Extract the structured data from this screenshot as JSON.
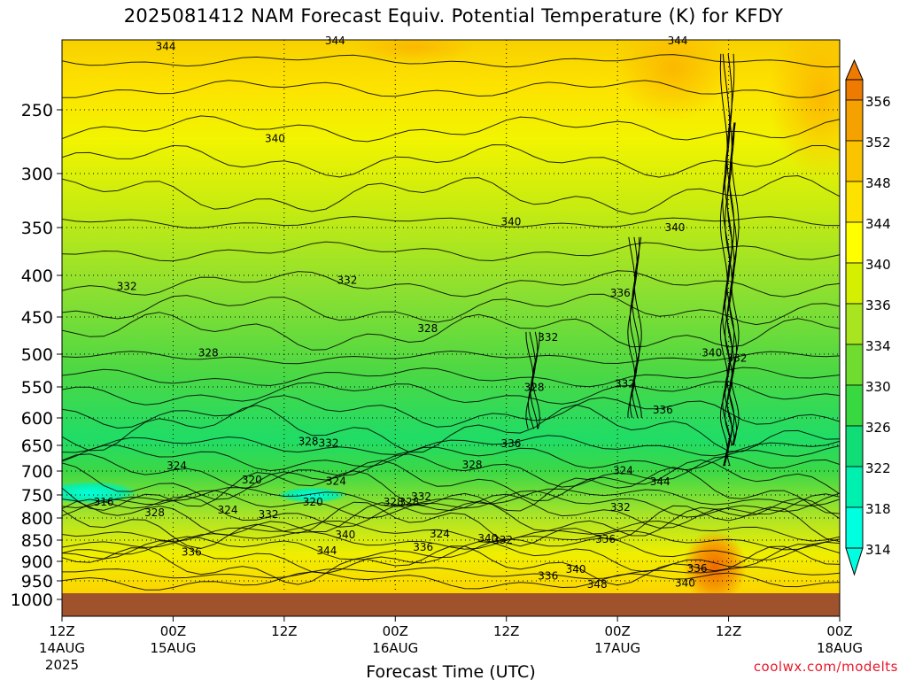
{
  "title": "2025081412 NAM Forecast Equiv. Potential Temperature (K) for KFDY",
  "credit": "coolwx.com/modelts",
  "chart_data": {
    "type": "heatmap",
    "title": "2025081412 NAM Forecast Equiv. Potential Temperature (K) for KFDY",
    "xlabel": "Forecast Time (UTC)",
    "ylabel": "",
    "x_range_hours": [
      0,
      84
    ],
    "x_ticks": [
      {
        "hour": 0,
        "label": "12Z",
        "date": "14AUG",
        "year": "2025"
      },
      {
        "hour": 12,
        "label": "00Z",
        "date": "15AUG",
        "year": ""
      },
      {
        "hour": 24,
        "label": "12Z",
        "date": "",
        "year": ""
      },
      {
        "hour": 36,
        "label": "00Z",
        "date": "16AUG",
        "year": ""
      },
      {
        "hour": 48,
        "label": "12Z",
        "date": "",
        "year": ""
      },
      {
        "hour": 60,
        "label": "00Z",
        "date": "17AUG",
        "year": ""
      },
      {
        "hour": 72,
        "label": "12Z",
        "date": "",
        "year": ""
      },
      {
        "hour": 84,
        "label": "00Z",
        "date": "18AUG",
        "year": ""
      }
    ],
    "y_ticks": [
      "250",
      "300",
      "350",
      "400",
      "450",
      "500",
      "550",
      "600",
      "650",
      "700",
      "750",
      "800",
      "850",
      "900",
      "950",
      "1000"
    ],
    "y_range_hpa": [
      1000,
      200
    ],
    "grid": true,
    "colorbar": {
      "values": [
        356,
        352,
        348,
        344,
        340,
        336,
        334,
        330,
        326,
        322,
        318,
        314
      ],
      "colors": [
        "#ee7a00",
        "#f5a200",
        "#fbc400",
        "#fde200",
        "#ffff00",
        "#d4f000",
        "#a8e420",
        "#70dc30",
        "#38d840",
        "#10dc78",
        "#00f0b0",
        "#00ffe0"
      ]
    },
    "series": [
      {
        "name": "theta-e contours",
        "labels": [
          {
            "v": 344,
            "hour": 11.2,
            "p": 204
          },
          {
            "v": 344,
            "hour": 29.5,
            "p": 196
          },
          {
            "v": 344,
            "hour": 66.5,
            "p": 200
          },
          {
            "v": 340,
            "hour": 23.0,
            "p": 272
          },
          {
            "v": 340,
            "hour": 48.5,
            "p": 344
          },
          {
            "v": 340,
            "hour": 66.2,
            "p": 349
          },
          {
            "v": 332,
            "hour": 7.0,
            "p": 412
          },
          {
            "v": 332,
            "hour": 30.8,
            "p": 405
          },
          {
            "v": 328,
            "hour": 15.8,
            "p": 497
          },
          {
            "v": 328,
            "hour": 39.5,
            "p": 464
          },
          {
            "v": 332,
            "hour": 52.5,
            "p": 476
          },
          {
            "v": 336,
            "hour": 60.3,
            "p": 420
          },
          {
            "v": 328,
            "hour": 51.0,
            "p": 549
          },
          {
            "v": 332,
            "hour": 60.8,
            "p": 544
          },
          {
            "v": 340,
            "hour": 70.2,
            "p": 497
          },
          {
            "v": 332,
            "hour": 72.9,
            "p": 505
          },
          {
            "v": 336,
            "hour": 64.9,
            "p": 586
          },
          {
            "v": 328,
            "hour": 26.6,
            "p": 641
          },
          {
            "v": 332,
            "hour": 28.8,
            "p": 644
          },
          {
            "v": 336,
            "hour": 48.5,
            "p": 645
          },
          {
            "v": 324,
            "hour": 12.4,
            "p": 688
          },
          {
            "v": 328,
            "hour": 44.3,
            "p": 686
          },
          {
            "v": 324,
            "hour": 60.6,
            "p": 697
          },
          {
            "v": 320,
            "hour": 20.5,
            "p": 717
          },
          {
            "v": 324,
            "hour": 29.6,
            "p": 719
          },
          {
            "v": 344,
            "hour": 64.6,
            "p": 720
          },
          {
            "v": 332,
            "hour": 38.8,
            "p": 752
          },
          {
            "v": 332,
            "hour": 60.3,
            "p": 775
          },
          {
            "v": 316,
            "hour": 4.5,
            "p": 763
          },
          {
            "v": 320,
            "hour": 27.1,
            "p": 763
          },
          {
            "v": 328,
            "hour": 35.8,
            "p": 763
          },
          {
            "v": 328,
            "hour": 37.5,
            "p": 763
          },
          {
            "v": 328,
            "hour": 10.0,
            "p": 787
          },
          {
            "v": 324,
            "hour": 17.9,
            "p": 781
          },
          {
            "v": 332,
            "hour": 22.3,
            "p": 790
          },
          {
            "v": 340,
            "hour": 30.6,
            "p": 836
          },
          {
            "v": 324,
            "hour": 40.8,
            "p": 834
          },
          {
            "v": 340,
            "hour": 46.0,
            "p": 844
          },
          {
            "v": 332,
            "hour": 47.6,
            "p": 848
          },
          {
            "v": 336,
            "hour": 58.7,
            "p": 846
          },
          {
            "v": 336,
            "hour": 14.0,
            "p": 876
          },
          {
            "v": 344,
            "hour": 28.6,
            "p": 873
          },
          {
            "v": 336,
            "hour": 39.0,
            "p": 865
          },
          {
            "v": 340,
            "hour": 55.5,
            "p": 918
          },
          {
            "v": 336,
            "hour": 52.5,
            "p": 935
          },
          {
            "v": 348,
            "hour": 57.8,
            "p": 957
          },
          {
            "v": 336,
            "hour": 68.6,
            "p": 916
          },
          {
            "v": 340,
            "hour": 67.3,
            "p": 953
          }
        ]
      }
    ]
  }
}
